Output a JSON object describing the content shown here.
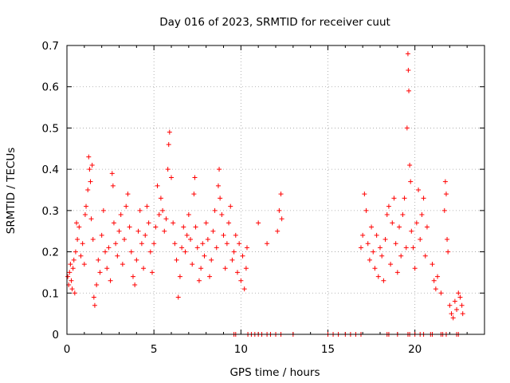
{
  "chart_data": {
    "type": "scatter",
    "title": "Day 016 of 2023, SRMTID for receiver cuut",
    "xlabel": "GPS time / hours",
    "ylabel": "SRMTID / TECUs",
    "xlim": [
      0,
      24
    ],
    "ylim": [
      0,
      0.7
    ],
    "xticks": [
      "0",
      "5",
      "10",
      "15",
      "20"
    ],
    "xtick_values": [
      0,
      5,
      10,
      15,
      20
    ],
    "yticks": [
      "0",
      "0.1",
      "0.2",
      "0.3",
      "0.4",
      "0.5",
      "0.6",
      "0.7"
    ],
    "ytick_values": [
      0,
      0.1,
      0.2,
      0.3,
      0.4,
      0.5,
      0.6,
      0.7
    ],
    "grid": true,
    "marker": "+",
    "color": "#ff0000",
    "series": [
      {
        "name": "SRMTID",
        "points": [
          [
            0.05,
            0.14
          ],
          [
            0.1,
            0.12
          ],
          [
            0.15,
            0.15
          ],
          [
            0.2,
            0.17
          ],
          [
            0.25,
            0.13
          ],
          [
            0.3,
            0.11
          ],
          [
            0.35,
            0.16
          ],
          [
            0.4,
            0.18
          ],
          [
            0.45,
            0.1
          ],
          [
            0.5,
            0.2
          ],
          [
            0.55,
            0.27
          ],
          [
            0.6,
            0.23
          ],
          [
            0.7,
            0.26
          ],
          [
            0.8,
            0.19
          ],
          [
            0.9,
            0.22
          ],
          [
            1.0,
            0.17
          ],
          [
            1.05,
            0.29
          ],
          [
            1.1,
            0.31
          ],
          [
            1.2,
            0.35
          ],
          [
            1.25,
            0.43
          ],
          [
            1.3,
            0.4
          ],
          [
            1.35,
            0.37
          ],
          [
            1.4,
            0.28
          ],
          [
            1.45,
            0.41
          ],
          [
            1.5,
            0.23
          ],
          [
            1.55,
            0.09
          ],
          [
            1.6,
            0.07
          ],
          [
            1.7,
            0.12
          ],
          [
            1.8,
            0.18
          ],
          [
            1.9,
            0.15
          ],
          [
            2.0,
            0.24
          ],
          [
            2.1,
            0.3
          ],
          [
            2.2,
            0.2
          ],
          [
            2.3,
            0.16
          ],
          [
            2.4,
            0.21
          ],
          [
            2.5,
            0.13
          ],
          [
            2.6,
            0.39
          ],
          [
            2.65,
            0.36
          ],
          [
            2.7,
            0.27
          ],
          [
            2.8,
            0.22
          ],
          [
            2.9,
            0.19
          ],
          [
            3.0,
            0.25
          ],
          [
            3.1,
            0.29
          ],
          [
            3.2,
            0.17
          ],
          [
            3.3,
            0.23
          ],
          [
            3.4,
            0.31
          ],
          [
            3.5,
            0.34
          ],
          [
            3.6,
            0.26
          ],
          [
            3.7,
            0.2
          ],
          [
            3.8,
            0.14
          ],
          [
            3.9,
            0.12
          ],
          [
            4.0,
            0.18
          ],
          [
            4.1,
            0.25
          ],
          [
            4.2,
            0.3
          ],
          [
            4.3,
            0.22
          ],
          [
            4.4,
            0.16
          ],
          [
            4.5,
            0.24
          ],
          [
            4.6,
            0.31
          ],
          [
            4.7,
            0.27
          ],
          [
            4.8,
            0.2
          ],
          [
            4.9,
            0.15
          ],
          [
            5.0,
            0.22
          ],
          [
            5.1,
            0.26
          ],
          [
            5.2,
            0.36
          ],
          [
            5.3,
            0.29
          ],
          [
            5.4,
            0.33
          ],
          [
            5.5,
            0.3
          ],
          [
            5.6,
            0.25
          ],
          [
            5.7,
            0.28
          ],
          [
            5.8,
            0.4
          ],
          [
            5.85,
            0.46
          ],
          [
            5.9,
            0.49
          ],
          [
            6.0,
            0.38
          ],
          [
            6.1,
            0.27
          ],
          [
            6.2,
            0.22
          ],
          [
            6.3,
            0.18
          ],
          [
            6.4,
            0.09
          ],
          [
            6.5,
            0.14
          ],
          [
            6.6,
            0.21
          ],
          [
            6.7,
            0.26
          ],
          [
            6.8,
            0.2
          ],
          [
            6.9,
            0.24
          ],
          [
            7.0,
            0.29
          ],
          [
            7.1,
            0.23
          ],
          [
            7.2,
            0.17
          ],
          [
            7.3,
            0.34
          ],
          [
            7.35,
            0.38
          ],
          [
            7.4,
            0.26
          ],
          [
            7.5,
            0.21
          ],
          [
            7.6,
            0.13
          ],
          [
            7.7,
            0.16
          ],
          [
            7.8,
            0.22
          ],
          [
            7.9,
            0.19
          ],
          [
            8.0,
            0.27
          ],
          [
            8.1,
            0.23
          ],
          [
            8.2,
            0.14
          ],
          [
            8.3,
            0.18
          ],
          [
            8.4,
            0.25
          ],
          [
            8.5,
            0.3
          ],
          [
            8.6,
            0.21
          ],
          [
            8.7,
            0.36
          ],
          [
            8.75,
            0.4
          ],
          [
            8.8,
            0.33
          ],
          [
            8.9,
            0.29
          ],
          [
            9.0,
            0.24
          ],
          [
            9.1,
            0.16
          ],
          [
            9.2,
            0.22
          ],
          [
            9.3,
            0.27
          ],
          [
            9.4,
            0.31
          ],
          [
            9.5,
            0.18
          ],
          [
            9.6,
            0.2
          ],
          [
            9.7,
            0.24
          ],
          [
            9.8,
            0.15
          ],
          [
            9.9,
            0.22
          ],
          [
            10.0,
            0.13
          ],
          [
            10.1,
            0.19
          ],
          [
            10.2,
            0.11
          ],
          [
            10.3,
            0.16
          ],
          [
            10.35,
            0.21
          ],
          [
            11.0,
            0.27
          ],
          [
            11.5,
            0.22
          ],
          [
            12.1,
            0.25
          ],
          [
            12.2,
            0.3
          ],
          [
            12.3,
            0.34
          ],
          [
            12.35,
            0.28
          ],
          [
            16.9,
            0.21
          ],
          [
            17.0,
            0.24
          ],
          [
            17.1,
            0.34
          ],
          [
            17.2,
            0.3
          ],
          [
            17.3,
            0.22
          ],
          [
            17.4,
            0.18
          ],
          [
            17.5,
            0.26
          ],
          [
            17.6,
            0.2
          ],
          [
            17.7,
            0.16
          ],
          [
            17.8,
            0.24
          ],
          [
            17.9,
            0.14
          ],
          [
            18.0,
            0.21
          ],
          [
            18.1,
            0.19
          ],
          [
            18.2,
            0.13
          ],
          [
            18.3,
            0.23
          ],
          [
            18.4,
            0.29
          ],
          [
            18.5,
            0.31
          ],
          [
            18.6,
            0.17
          ],
          [
            18.7,
            0.27
          ],
          [
            18.8,
            0.33
          ],
          [
            18.9,
            0.22
          ],
          [
            19.0,
            0.15
          ],
          [
            19.1,
            0.26
          ],
          [
            19.2,
            0.19
          ],
          [
            19.3,
            0.29
          ],
          [
            19.4,
            0.33
          ],
          [
            19.5,
            0.21
          ],
          [
            19.55,
            0.5
          ],
          [
            19.6,
            0.68
          ],
          [
            19.62,
            0.64
          ],
          [
            19.65,
            0.59
          ],
          [
            19.7,
            0.41
          ],
          [
            19.75,
            0.37
          ],
          [
            19.8,
            0.25
          ],
          [
            19.9,
            0.21
          ],
          [
            20.0,
            0.16
          ],
          [
            20.1,
            0.27
          ],
          [
            20.2,
            0.35
          ],
          [
            20.3,
            0.23
          ],
          [
            20.4,
            0.29
          ],
          [
            20.5,
            0.33
          ],
          [
            20.6,
            0.19
          ],
          [
            20.7,
            0.26
          ],
          [
            21.0,
            0.17
          ],
          [
            21.1,
            0.13
          ],
          [
            21.2,
            0.11
          ],
          [
            21.3,
            0.14
          ],
          [
            21.5,
            0.1
          ],
          [
            21.7,
            0.3
          ],
          [
            21.75,
            0.37
          ],
          [
            21.8,
            0.34
          ],
          [
            21.85,
            0.23
          ],
          [
            21.9,
            0.2
          ],
          [
            22.0,
            0.07
          ],
          [
            22.1,
            0.05
          ],
          [
            22.2,
            0.04
          ],
          [
            22.3,
            0.08
          ],
          [
            22.4,
            0.06
          ],
          [
            22.5,
            0.1
          ],
          [
            22.6,
            0.09
          ],
          [
            22.7,
            0.07
          ],
          [
            22.75,
            0.05
          ]
        ],
        "zero_points": [
          9.6,
          9.7,
          10.4,
          10.6,
          10.8,
          11.0,
          11.2,
          11.5,
          11.7,
          12.0,
          12.3,
          13.0,
          15.0,
          15.3,
          15.6,
          16.0,
          16.3,
          16.6,
          16.9,
          18.4,
          18.5,
          19.0,
          19.6,
          19.7,
          20.0,
          20.3,
          20.5,
          20.9,
          21.0,
          21.5,
          21.6,
          21.8,
          22.4,
          22.5
        ]
      }
    ]
  }
}
